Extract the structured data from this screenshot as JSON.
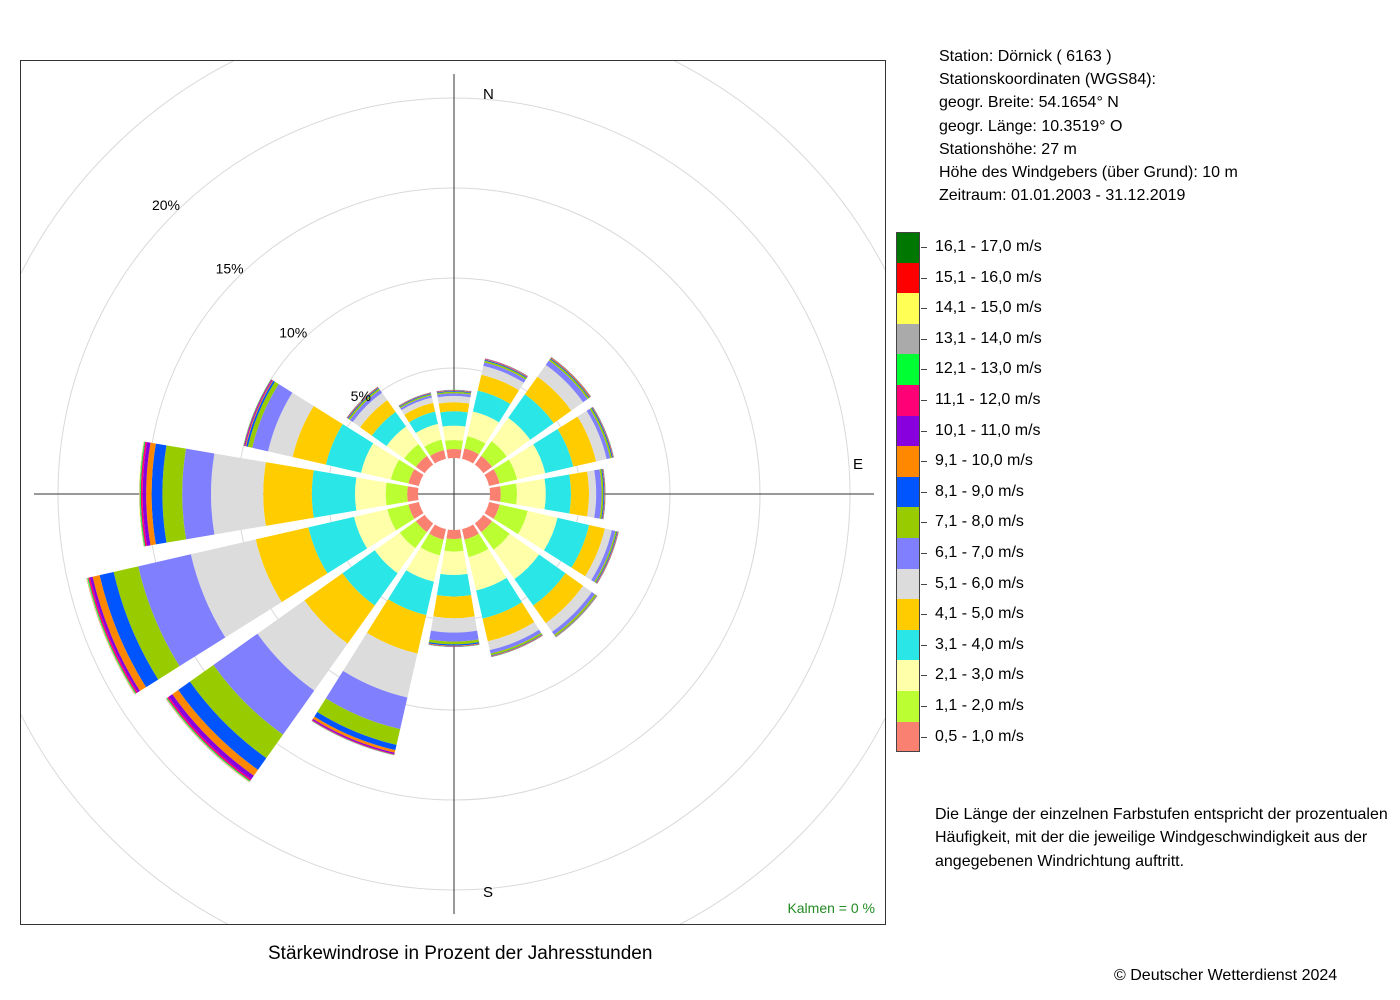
{
  "chart_data": {
    "type": "windrose",
    "title": "Stärkewindrose in Prozent der Jahresstunden",
    "calm": "Kalmen  =  0 %",
    "directions": [
      "N",
      "NNO",
      "NO",
      "ONO",
      "O",
      "OSO",
      "SO",
      "SSO",
      "S",
      "SSW",
      "SW",
      "WSW",
      "W",
      "WNW",
      "NW",
      "NNW"
    ],
    "direction_angles_deg": [
      0,
      22.5,
      45,
      67.5,
      90,
      112.5,
      135,
      157.5,
      180,
      202.5,
      225,
      247.5,
      270,
      292.5,
      315,
      337.5
    ],
    "compass_labels": [
      "N",
      "E",
      "S"
    ],
    "ring_labels": [
      {
        "value": 5,
        "label": "5%"
      },
      {
        "value": 10,
        "label": "10%"
      },
      {
        "value": 15,
        "label": "15%"
      },
      {
        "value": 20,
        "label": "20%"
      }
    ],
    "radial_max_percent": 23,
    "speed_classes": [
      {
        "label": "0,5 - 1,0 m/s",
        "color": "#FA8072"
      },
      {
        "label": "1,1 - 2,0 m/s",
        "color": "#BBFF33"
      },
      {
        "label": "2,1 - 3,0 m/s",
        "color": "#FFFFAA"
      },
      {
        "label": "3,1 - 4,0 m/s",
        "color": "#2AE6E6"
      },
      {
        "label": "4,1 - 5,0 m/s",
        "color": "#FFCC00"
      },
      {
        "label": "5,1 - 6,0 m/s",
        "color": "#DCDCDC"
      },
      {
        "label": "6,1 - 7,0 m/s",
        "color": "#8080FF"
      },
      {
        "label": "7,1 - 8,0 m/s",
        "color": "#99CC00"
      },
      {
        "label": "8,1 - 9,0 m/s",
        "color": "#0055FF"
      },
      {
        "label": "9,1 - 10,0 m/s",
        "color": "#FF8800"
      },
      {
        "label": "10,1 - 11,0 m/s",
        "color": "#8800DD"
      },
      {
        "label": "11,1 - 12,0 m/s",
        "color": "#FF0077"
      },
      {
        "label": "12,1 - 13,0 m/s",
        "color": "#00FF33"
      },
      {
        "label": "13,1 - 14,0 m/s",
        "color": "#AAAAAA"
      },
      {
        "label": "14,1 - 15,0 m/s",
        "color": "#FFFF55"
      },
      {
        "label": "15,1 - 16,0 m/s",
        "color": "#FF0000"
      },
      {
        "label": "16,1 - 17,0 m/s",
        "color": "#007700"
      }
    ],
    "cumulative_percent": {
      "N": [
        0.5,
        1.0,
        1.8,
        2.6,
        3.1,
        3.45,
        3.6,
        3.68,
        3.72,
        3.75,
        3.77,
        3.78,
        3.79,
        3.8,
        3.8,
        3.8,
        3.8
      ],
      "NNO": [
        0.6,
        1.3,
        2.7,
        3.9,
        4.8,
        5.3,
        5.5,
        5.6,
        5.65,
        5.68,
        5.7,
        5.72,
        5.73,
        5.74,
        5.74,
        5.74,
        5.74
      ],
      "NO": [
        0.6,
        1.6,
        3.2,
        4.8,
        6.0,
        6.8,
        7.1,
        7.2,
        7.25,
        7.3,
        7.32,
        7.33,
        7.34,
        7.35,
        7.35,
        7.35,
        7.35
      ],
      "ONO": [
        0.6,
        1.6,
        3.2,
        4.8,
        6.1,
        6.7,
        6.9,
        7.0,
        7.05,
        7.08,
        7.1,
        7.11,
        7.12,
        7.12,
        7.12,
        7.12,
        7.12
      ],
      "O": [
        0.6,
        1.5,
        3.1,
        4.5,
        5.5,
        5.9,
        6.2,
        6.3,
        6.35,
        6.38,
        6.4,
        6.41,
        6.42,
        6.42,
        6.42,
        6.42,
        6.42
      ],
      "OSO": [
        0.6,
        2.2,
        3.9,
        5.7,
        6.6,
        7.0,
        7.2,
        7.28,
        7.32,
        7.35,
        7.37,
        7.38,
        7.39,
        7.4,
        7.4,
        7.4,
        7.4
      ],
      "SO": [
        0.6,
        1.8,
        3.8,
        5.6,
        6.8,
        7.4,
        7.6,
        7.7,
        7.72,
        7.74,
        7.75,
        7.76,
        7.77,
        7.78,
        7.78,
        7.78,
        7.78
      ],
      "SSO": [
        0.6,
        1.6,
        3.5,
        5.1,
        6.4,
        6.9,
        7.1,
        7.2,
        7.23,
        7.26,
        7.28,
        7.29,
        7.3,
        7.3,
        7.3,
        7.3,
        7.3
      ],
      "S": [
        0.5,
        1.2,
        2.5,
        3.7,
        4.9,
        5.7,
        6.2,
        6.35,
        6.42,
        6.46,
        6.48,
        6.49,
        6.5,
        6.5,
        6.5,
        6.5,
        6.5
      ],
      "SSW": [
        0.6,
        1.5,
        3.0,
        4.9,
        7.1,
        9.6,
        11.4,
        12.3,
        12.6,
        12.75,
        12.82,
        12.86,
        12.88,
        12.9,
        12.9,
        12.9,
        12.9
      ],
      "SW": [
        0.6,
        1.7,
        3.4,
        5.6,
        8.2,
        11.4,
        14.4,
        16.0,
        16.8,
        17.2,
        17.45,
        17.55,
        17.6,
        17.62,
        17.64,
        17.65,
        17.65
      ],
      "WSW": [
        0.6,
        1.8,
        3.7,
        6.3,
        9.3,
        13.0,
        16.0,
        17.4,
        18.2,
        18.6,
        18.75,
        18.85,
        18.9,
        18.92,
        18.94,
        18.95,
        18.95
      ],
      "W": [
        0.6,
        1.8,
        3.5,
        5.9,
        8.6,
        11.5,
        13.1,
        14.2,
        14.8,
        15.1,
        15.3,
        15.4,
        15.45,
        15.48,
        15.5,
        15.5,
        15.5
      ],
      "WNW": [
        0.6,
        1.6,
        3.3,
        5.3,
        7.2,
        8.6,
        9.5,
        9.75,
        9.85,
        9.9,
        9.95,
        9.98,
        10.0,
        10.0,
        10.0,
        10.0,
        10.0
      ],
      "NW": [
        0.6,
        1.4,
        2.6,
        3.6,
        4.4,
        4.9,
        5.1,
        5.2,
        5.25,
        5.28,
        5.3,
        5.31,
        5.32,
        5.32,
        5.32,
        5.32,
        5.32
      ],
      "NNW": [
        0.5,
        1.1,
        2.0,
        2.7,
        3.2,
        3.5,
        3.62,
        3.7,
        3.74,
        3.76,
        3.78,
        3.79,
        3.8,
        3.8,
        3.8,
        3.8,
        3.8
      ]
    }
  },
  "station": {
    "line1": "Station:  Dörnick  ( 6163 )",
    "line2": "Stationskoordinaten (WGS84):",
    "line3": "geogr. Breite: 54.1654° N",
    "line4": "geogr. Länge: 10.3519° O",
    "line5": "Stationshöhe: 27 m",
    "line6": "Höhe des Windgebers (über Grund): 10 m",
    "line7": "Zeitraum: 01.01.2003 - 31.12.2019"
  },
  "note": "Die Länge der einzelnen Farbstufen entspricht der prozentualen Häufigkeit, mit der die jeweilige Windgeschwindigkeit aus der angegebenen Windrichtung auftritt.",
  "copyright": "© Deutscher Wetterdienst  2024",
  "colors": {
    "calm_text": "#228B22",
    "grid": "#d9d9d9",
    "axis": "#333333"
  }
}
